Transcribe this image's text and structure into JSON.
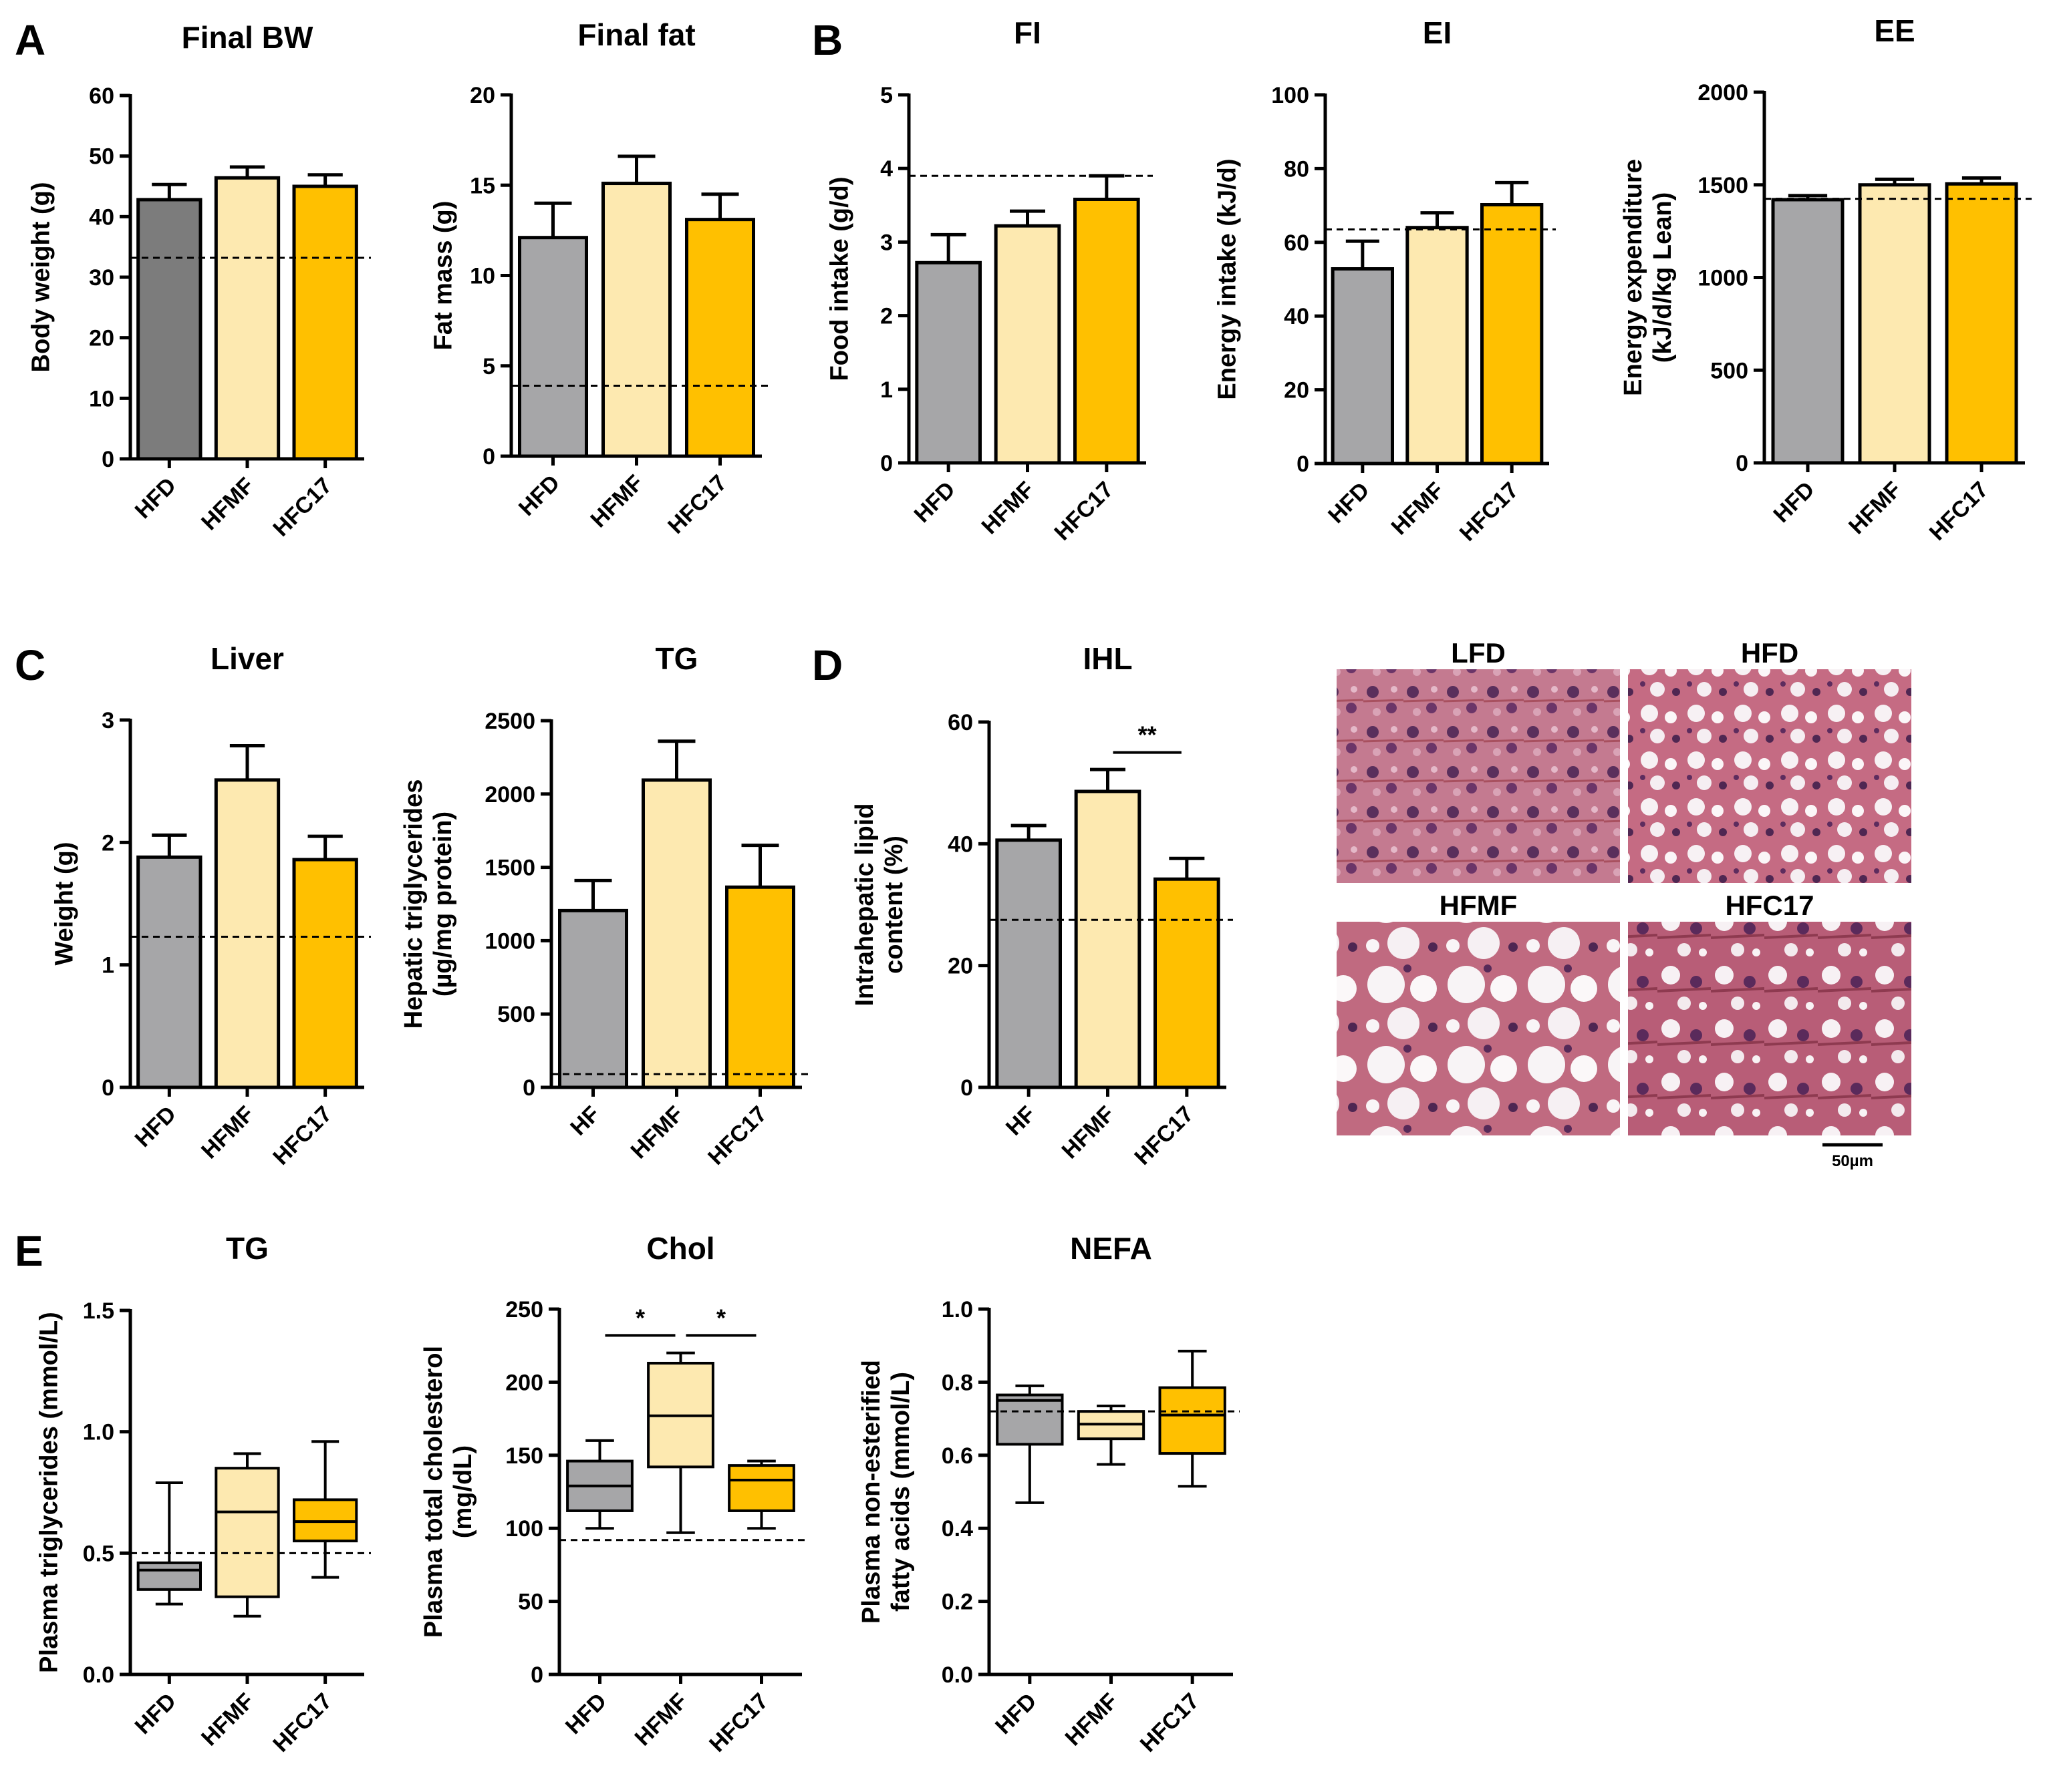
{
  "colors": {
    "HFD_dark": "#7c7c7c",
    "HFD": "#a6a6a8",
    "HFMF": "#fde9b0",
    "HFC17": "#ffc000",
    "stroke": "#000000"
  },
  "panels": {
    "A": "A",
    "B": "B",
    "C": "C",
    "D": "D",
    "E": "E"
  },
  "histology": {
    "labels": [
      "LFD",
      "HFD",
      "HFMF",
      "HFC17"
    ],
    "scale_bar": "50µm"
  },
  "chart_data": [
    {
      "id": "final_bw",
      "type": "bar",
      "title": "Final BW",
      "ylabel": [
        "Body weight (g)"
      ],
      "ylim": [
        0,
        60
      ],
      "yticks": [
        "0",
        "10",
        "20",
        "30",
        "40",
        "50",
        "60"
      ],
      "categories": [
        "HFD",
        "HFMF",
        "HFC17"
      ],
      "values": [
        42.8,
        46.4,
        45.0
      ],
      "errors": [
        2.5,
        1.8,
        1.9
      ],
      "ref_line": 33.2,
      "first_color": "HFD_dark"
    },
    {
      "id": "final_fat",
      "type": "bar",
      "title": "Final fat",
      "ylabel": [
        "Fat mass (g)"
      ],
      "ylim": [
        0,
        20
      ],
      "yticks": [
        "0",
        "5",
        "10",
        "15",
        "20"
      ],
      "categories": [
        "HFD",
        "HFMF",
        "HFC17"
      ],
      "values": [
        12.1,
        15.1,
        13.1
      ],
      "errors": [
        1.9,
        1.5,
        1.4
      ],
      "ref_line": 3.9
    },
    {
      "id": "fi",
      "type": "bar",
      "title": "FI",
      "ylabel": [
        "Food intake (g/d)"
      ],
      "ylim": [
        0,
        5
      ],
      "yticks": [
        "0",
        "1",
        "2",
        "3",
        "4",
        "5"
      ],
      "categories": [
        "HFD",
        "HFMF",
        "HFC17"
      ],
      "values": [
        2.72,
        3.22,
        3.58
      ],
      "errors": [
        0.38,
        0.2,
        0.32
      ],
      "ref_line": 3.9
    },
    {
      "id": "ei",
      "type": "bar",
      "title": "EI",
      "ylabel": [
        "Energy intake (kJ/d)"
      ],
      "ylim": [
        0,
        100
      ],
      "yticks": [
        "0",
        "20",
        "40",
        "60",
        "80",
        "100"
      ],
      "categories": [
        "HFD",
        "HFMF",
        "HFC17"
      ],
      "values": [
        52.8,
        64.0,
        70.2
      ],
      "errors": [
        7.5,
        4.0,
        6.0
      ],
      "ref_line": 63.5
    },
    {
      "id": "ee",
      "type": "bar",
      "title": "EE",
      "ylabel": [
        "Energy expenditure",
        "(kJ/d/kg Lean)"
      ],
      "ylim": [
        0,
        2000
      ],
      "yticks": [
        "0",
        "500",
        "1000",
        "1500",
        "2000"
      ],
      "categories": [
        "HFD",
        "HFMF",
        "HFC17"
      ],
      "values": [
        1420,
        1500,
        1505
      ],
      "errors": [
        22,
        30,
        32
      ],
      "ref_line": 1425
    },
    {
      "id": "liver",
      "type": "bar",
      "title": "Liver",
      "ylabel": [
        "Weight (g)"
      ],
      "ylim": [
        0,
        3
      ],
      "yticks": [
        "0",
        "1",
        "2",
        "3"
      ],
      "categories": [
        "HFD",
        "HFMF",
        "HFC17"
      ],
      "values": [
        1.88,
        2.51,
        1.86
      ],
      "errors": [
        0.18,
        0.28,
        0.19
      ],
      "ref_line": 1.23
    },
    {
      "id": "hep_tg",
      "type": "bar",
      "title": "TG",
      "ylabel": [
        "Hepatic triglycerides",
        "(µg/mg protein)"
      ],
      "ylim": [
        0,
        2500
      ],
      "yticks": [
        "0",
        "500",
        "1000",
        "1500",
        "2000",
        "2500"
      ],
      "categories": [
        "HF",
        "HFMF",
        "HFC17"
      ],
      "values": [
        1205,
        2095,
        1365
      ],
      "errors": [
        205,
        265,
        285
      ],
      "ref_line": 90
    },
    {
      "id": "ihl",
      "type": "bar",
      "title": "IHL",
      "ylabel": [
        "Intrahepatic lipid",
        "content (%)"
      ],
      "ylim": [
        0,
        60
      ],
      "yticks": [
        "0",
        "20",
        "40",
        "60"
      ],
      "categories": [
        "HF",
        "HFMF",
        "HFC17"
      ],
      "values": [
        40.6,
        48.6,
        34.2
      ],
      "errors": [
        2.4,
        3.6,
        3.4
      ],
      "ref_line": 27.5,
      "sig": [
        {
          "from": 1,
          "to": 2,
          "label": "**",
          "y": 55
        }
      ]
    },
    {
      "id": "plasma_tg",
      "type": "box",
      "title": "TG",
      "ylabel": [
        "Plasma triglycerides (mmol/L)"
      ],
      "ylim": [
        0,
        1.5
      ],
      "yticks": [
        "0.0",
        "0.5",
        "1.0",
        "1.5"
      ],
      "categories": [
        "HFD",
        "HFMF",
        "HFC17"
      ],
      "boxes": [
        [
          0.29,
          0.35,
          0.43,
          0.46,
          0.79
        ],
        [
          0.24,
          0.32,
          0.67,
          0.85,
          0.91
        ],
        [
          0.4,
          0.55,
          0.63,
          0.72,
          0.96
        ]
      ],
      "ref_line": 0.5
    },
    {
      "id": "plasma_chol",
      "type": "box",
      "title": "Chol",
      "ylabel": [
        "Plasma total cholesterol",
        "(mg/dL)"
      ],
      "ylim": [
        0,
        250
      ],
      "yticks": [
        "0",
        "50",
        "100",
        "150",
        "200",
        "250"
      ],
      "categories": [
        "HFD",
        "HFMF",
        "HFC17"
      ],
      "boxes": [
        [
          100,
          112,
          129,
          146,
          160
        ],
        [
          97,
          142,
          177,
          213,
          220
        ],
        [
          100,
          112,
          133,
          143,
          146
        ]
      ],
      "ref_line": 92,
      "sig": [
        {
          "from": 0,
          "to": 1,
          "label": "*",
          "y": 232
        },
        {
          "from": 1,
          "to": 2,
          "label": "*",
          "y": 232
        }
      ]
    },
    {
      "id": "plasma_nefa",
      "type": "box",
      "title": "NEFA",
      "ylabel": [
        "Plasma non-esterified",
        "fatty acids (mmol/L)"
      ],
      "ylim": [
        0,
        1.0
      ],
      "yticks": [
        "0.0",
        "0.2",
        "0.4",
        "0.6",
        "0.8",
        "1.0"
      ],
      "categories": [
        "HFD",
        "HFMF",
        "HFC17"
      ],
      "boxes": [
        [
          0.47,
          0.63,
          0.75,
          0.765,
          0.79
        ],
        [
          0.575,
          0.645,
          0.685,
          0.72,
          0.735
        ],
        [
          0.515,
          0.605,
          0.71,
          0.785,
          0.885
        ]
      ],
      "ref_line": 0.72
    }
  ]
}
